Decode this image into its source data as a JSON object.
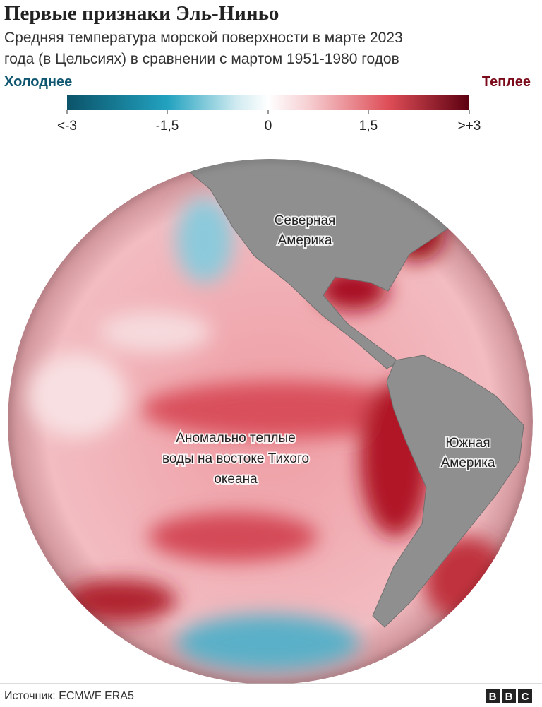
{
  "header": {
    "title": "Первые признаки Эль-Ниньо",
    "subtitle_lines": [
      "Средняя температура морской поверхности в марте 2023",
      "года (в Цельсиях) в сравнении с мартом 1951-1980 годов"
    ]
  },
  "scale": {
    "cold_label": "Холоднее",
    "warm_label": "Теплее",
    "ticks": [
      "<-3",
      "-1,5",
      "0",
      "1,5",
      ">+3"
    ]
  },
  "map": {
    "labels": [
      {
        "lines": [
          "Северная",
          "Америка"
        ]
      },
      {
        "lines": [
          "Южная",
          "Америка"
        ]
      },
      {
        "lines": [
          "Аномально теплые",
          "воды на востоке Тихого",
          "океана"
        ]
      }
    ]
  },
  "footer": {
    "source": "Источник: ECMWF ERA5",
    "logo": [
      "B",
      "B",
      "C"
    ]
  }
}
